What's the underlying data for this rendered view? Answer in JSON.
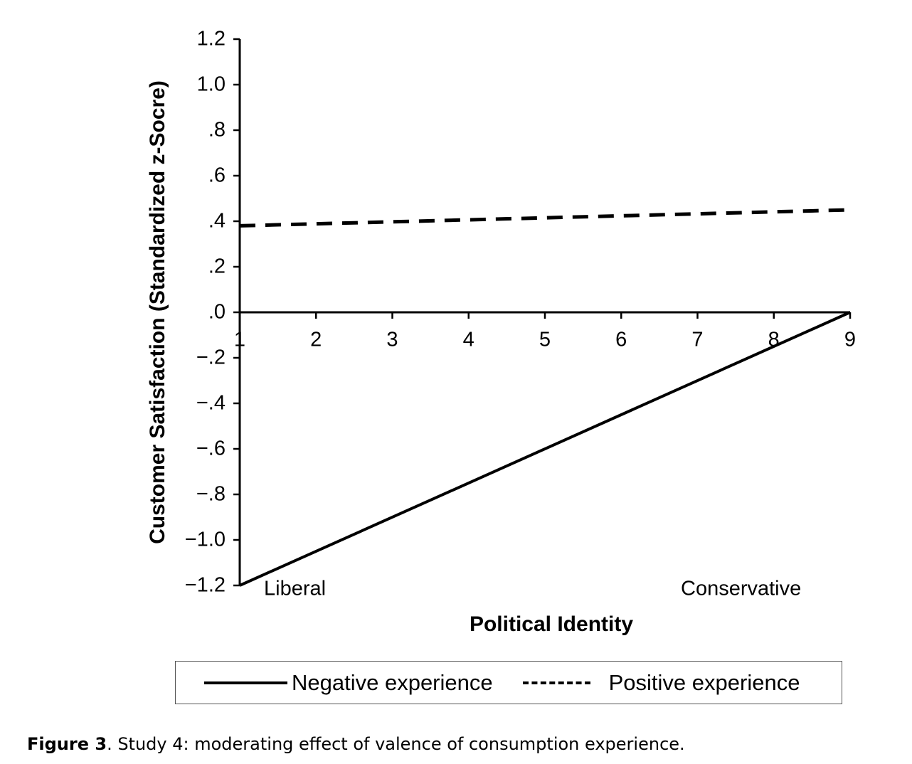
{
  "chart_data": {
    "type": "line",
    "title": "",
    "xlabel": "Political Identity",
    "ylabel": "Customer Satisfaction (Standardized z-Socre)",
    "x": [
      1,
      9
    ],
    "xticks": [
      "1",
      "2",
      "3",
      "4",
      "5",
      "6",
      "7",
      "8",
      "9"
    ],
    "yticks": [
      "1.2",
      "1.0",
      ".8",
      ".6",
      ".4",
      ".2",
      ".0",
      "−.2",
      "−.4",
      "−.6",
      "−.8",
      "−1.0",
      "−1.2"
    ],
    "ytick_values": [
      1.2,
      1.0,
      0.8,
      0.6,
      0.4,
      0.2,
      0.0,
      -0.2,
      -0.4,
      -0.6,
      -0.8,
      -1.0,
      -1.2
    ],
    "ylim": [
      -1.2,
      1.2
    ],
    "xlim": [
      1,
      9
    ],
    "grid": false,
    "legend_position": "bottom",
    "series": [
      {
        "name": "Negative experience",
        "style": "solid",
        "values": [
          -1.2,
          0.0
        ]
      },
      {
        "name": "Positive experience",
        "style": "dashed",
        "values": [
          0.38,
          0.45
        ]
      }
    ],
    "annotations": {
      "left": "Liberal",
      "right": "Conservative"
    }
  },
  "caption": {
    "label": "Figure 3",
    "text": ". Study 4: moderating effect of valence of consumption experience."
  }
}
